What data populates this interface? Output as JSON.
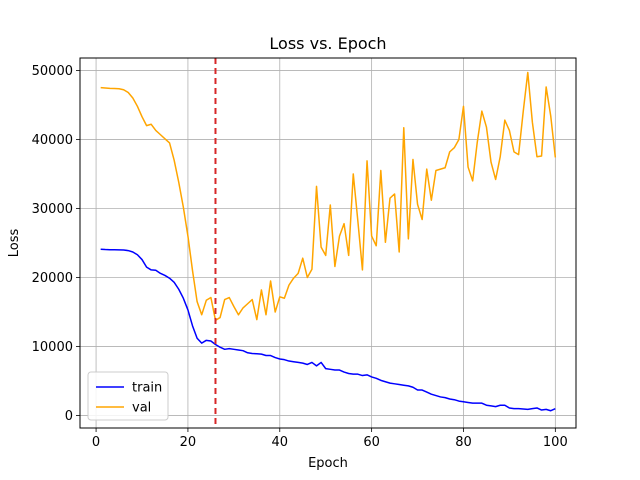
{
  "chart_data": {
    "type": "line",
    "title": "Loss vs. Epoch",
    "xlabel": "Epoch",
    "ylabel": "Loss",
    "xlim": [
      -3.5,
      104.5
    ],
    "ylim": [
      -1800,
      51800
    ],
    "xticks": [
      0,
      20,
      40,
      60,
      80,
      100
    ],
    "yticks": [
      0,
      10000,
      20000,
      30000,
      40000,
      50000
    ],
    "grid": true,
    "legend_position": "lower-left",
    "vline": {
      "x": 26,
      "color": "#d62728",
      "style": "dashed"
    },
    "series": [
      {
        "name": "train",
        "color": "#0000ff",
        "x": [
          1,
          2,
          3,
          4,
          5,
          6,
          7,
          8,
          9,
          10,
          11,
          12,
          13,
          14,
          15,
          16,
          17,
          18,
          19,
          20,
          21,
          22,
          23,
          24,
          25,
          26,
          27,
          28,
          29,
          30,
          31,
          32,
          33,
          34,
          35,
          36,
          37,
          38,
          39,
          40,
          41,
          42,
          43,
          44,
          45,
          46,
          47,
          48,
          49,
          50,
          51,
          52,
          53,
          54,
          55,
          56,
          57,
          58,
          59,
          60,
          61,
          62,
          63,
          64,
          65,
          66,
          67,
          68,
          69,
          70,
          71,
          72,
          73,
          74,
          75,
          76,
          77,
          78,
          79,
          80,
          81,
          82,
          83,
          84,
          85,
          86,
          87,
          88,
          89,
          90,
          91,
          92,
          93,
          94,
          95,
          96,
          97,
          98,
          99,
          100
        ],
        "values": [
          24100,
          24050,
          24030,
          24020,
          24000,
          23980,
          23900,
          23700,
          23300,
          22600,
          21500,
          21100,
          21050,
          20600,
          20300,
          19900,
          19300,
          18300,
          17000,
          15300,
          13000,
          11200,
          10500,
          10900,
          10800,
          10300,
          9900,
          9600,
          9700,
          9600,
          9500,
          9400,
          9100,
          9000,
          8950,
          8900,
          8700,
          8700,
          8400,
          8200,
          8100,
          7900,
          7800,
          7700,
          7600,
          7400,
          7700,
          7200,
          7700,
          6800,
          6700,
          6600,
          6600,
          6300,
          6100,
          6000,
          6000,
          5800,
          5900,
          5600,
          5400,
          5100,
          4900,
          4700,
          4600,
          4500,
          4400,
          4300,
          4100,
          3700,
          3700,
          3400,
          3100,
          2900,
          2700,
          2600,
          2400,
          2300,
          2100,
          2000,
          1900,
          1800,
          1800,
          1800,
          1500,
          1400,
          1300,
          1500,
          1500,
          1100,
          1000,
          1000,
          950,
          900,
          1000,
          1100,
          800,
          900,
          700,
          1000
        ]
      },
      {
        "name": "val",
        "color": "#ffa500",
        "x": [
          1,
          2,
          3,
          4,
          5,
          6,
          7,
          8,
          9,
          10,
          11,
          12,
          13,
          14,
          15,
          16,
          17,
          18,
          19,
          20,
          21,
          22,
          23,
          24,
          25,
          26,
          27,
          28,
          29,
          30,
          31,
          32,
          33,
          34,
          35,
          36,
          37,
          38,
          39,
          40,
          41,
          42,
          43,
          44,
          45,
          46,
          47,
          48,
          49,
          50,
          51,
          52,
          53,
          54,
          55,
          56,
          57,
          58,
          59,
          60,
          61,
          62,
          63,
          64,
          65,
          66,
          67,
          68,
          69,
          70,
          71,
          72,
          73,
          74,
          75,
          76,
          77,
          78,
          79,
          80,
          81,
          82,
          83,
          84,
          85,
          86,
          87,
          88,
          89,
          90,
          91,
          92,
          93,
          94,
          95,
          96,
          97,
          98,
          99,
          100
        ],
        "values": [
          47500,
          47450,
          47400,
          47380,
          47350,
          47200,
          46800,
          46000,
          44800,
          43300,
          42000,
          42200,
          41300,
          40700,
          40100,
          39500,
          37000,
          33800,
          30200,
          26000,
          21000,
          16500,
          14600,
          16700,
          17100,
          13800,
          14200,
          16800,
          17100,
          15800,
          14600,
          15600,
          16200,
          16800,
          13900,
          18200,
          14600,
          19500,
          15000,
          17200,
          17000,
          18900,
          19900,
          20600,
          22800,
          20000,
          21200,
          33200,
          24400,
          23200,
          30500,
          21600,
          26000,
          27800,
          23200,
          35000,
          28200,
          21100,
          36900,
          26000,
          24600,
          35500,
          25100,
          31500,
          32100,
          23700,
          41700,
          25600,
          37100,
          30600,
          28400,
          35700,
          31200,
          35500,
          35700,
          35900,
          38200,
          38800,
          40000,
          44800,
          36000,
          34000,
          39600,
          44100,
          41800,
          36700,
          34200,
          37500,
          42800,
          41300,
          38200,
          37800,
          44000,
          49700,
          42500,
          37500,
          37600,
          47600,
          43400,
          37400
        ]
      }
    ]
  }
}
